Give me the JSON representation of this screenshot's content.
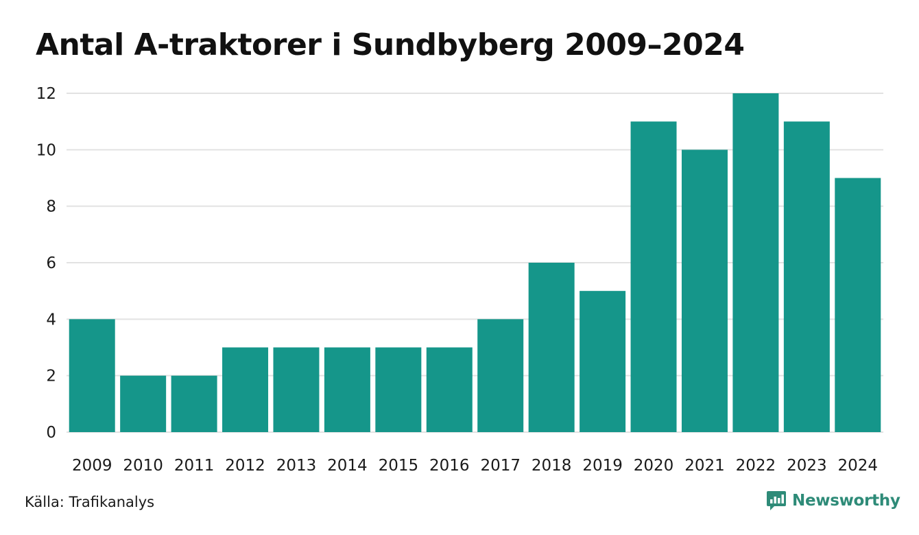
{
  "title": "Antal A-traktorer i Sundbyberg 2009–2024",
  "source": "Källa: Trafikanalys",
  "brand": {
    "name": "Newsworthy",
    "icon": "newsworthy-logo-icon",
    "color": "#2e8b78"
  },
  "colors": {
    "bar": "#15968a",
    "grid": "#e2e2e2"
  },
  "chart_data": {
    "type": "bar",
    "title": "Antal A-traktorer i Sundbyberg 2009–2024",
    "xlabel": "",
    "ylabel": "",
    "categories": [
      "2009",
      "2010",
      "2011",
      "2012",
      "2013",
      "2014",
      "2015",
      "2016",
      "2017",
      "2018",
      "2019",
      "2020",
      "2021",
      "2022",
      "2023",
      "2024"
    ],
    "values": [
      4,
      2,
      2,
      3,
      3,
      3,
      3,
      3,
      4,
      6,
      5,
      11,
      10,
      12,
      11,
      9
    ],
    "ylim": [
      0,
      12
    ],
    "yticks": [
      0,
      2,
      4,
      6,
      8,
      10,
      12
    ],
    "grid": true,
    "legend": "none"
  }
}
